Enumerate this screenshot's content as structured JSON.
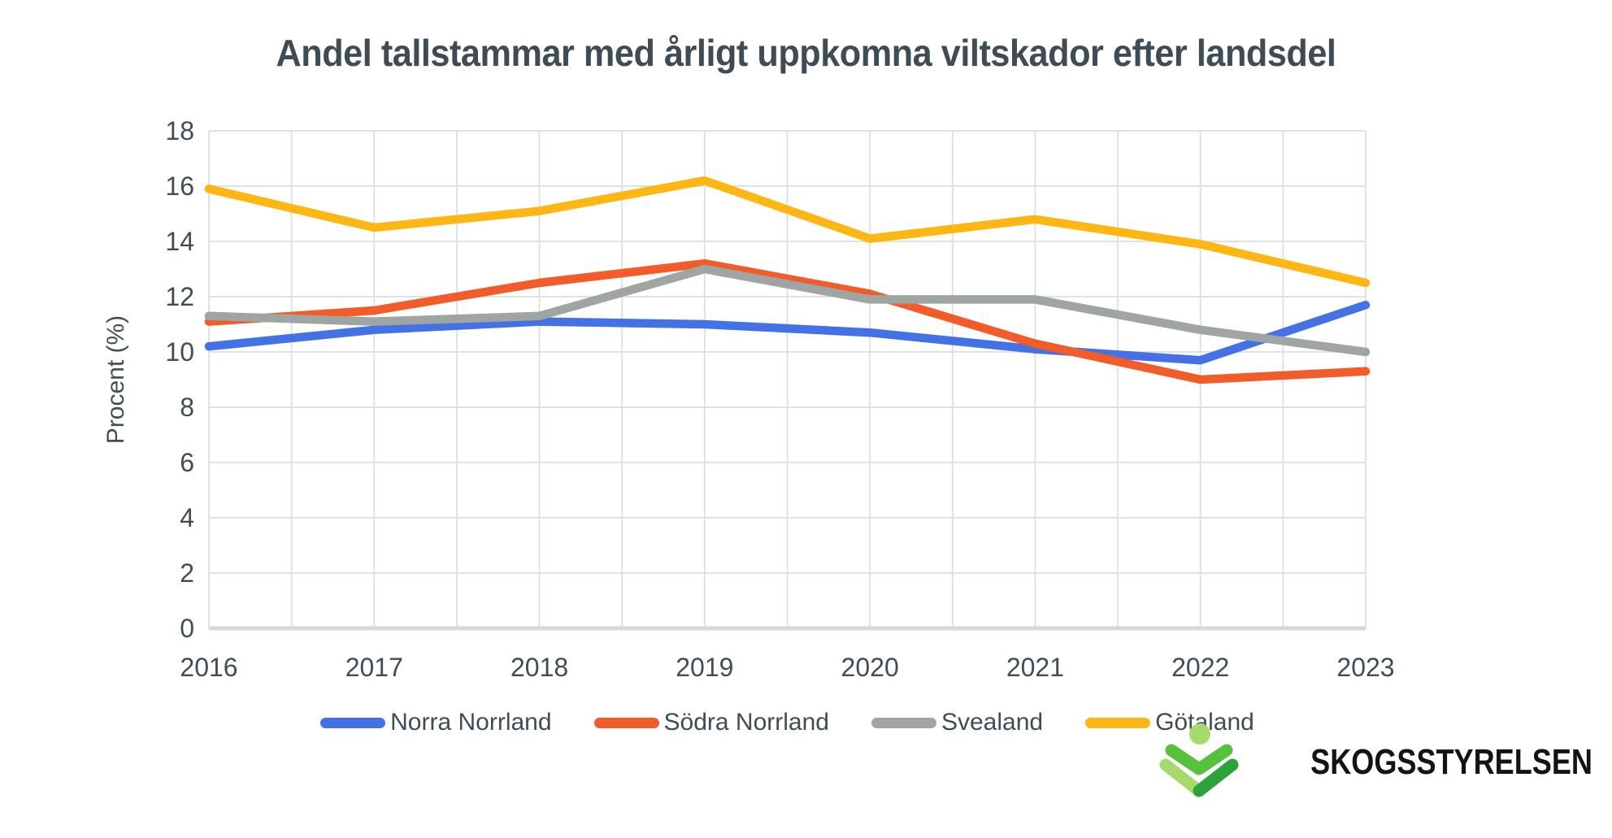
{
  "title": "Andel tallstammar med årligt uppkomna viltskador efter landsdel",
  "y_axis_label": "Procent (%)",
  "logo_text": "SKOGSSTYRELSEN",
  "style": {
    "grid_color": "#dde3e1",
    "baseline_color": "#d3dad8",
    "text_color": "#3f4e55",
    "title_color": "#3e4c55",
    "logo_greens": [
      "#a6da6c",
      "#56c13c",
      "#2ea23a"
    ]
  },
  "chart_data": {
    "type": "line",
    "title": "Andel tallstammar med årligt uppkomna viltskador efter landsdel",
    "xlabel": "",
    "ylabel": "Procent (%)",
    "ylim": [
      0,
      18
    ],
    "ytick_step": 2,
    "grid": true,
    "x_minor_gridlines": "half-step",
    "legend_position": "bottom",
    "categories": [
      "2016",
      "2017",
      "2018",
      "2019",
      "2020",
      "2021",
      "2022",
      "2023"
    ],
    "series": [
      {
        "name": "Norra Norrland",
        "color": "#4472e4",
        "values": [
          10.2,
          10.8,
          11.1,
          11.0,
          10.7,
          10.1,
          9.7,
          11.7
        ]
      },
      {
        "name": "Södra Norrland",
        "color": "#f25c2a",
        "values": [
          11.1,
          11.5,
          12.5,
          13.2,
          12.1,
          10.3,
          9.0,
          9.3
        ]
      },
      {
        "name": "Svealand",
        "color": "#9ea5a2",
        "values": [
          11.3,
          11.1,
          11.3,
          13.0,
          11.9,
          11.9,
          10.8,
          10.0
        ]
      },
      {
        "name": "Götaland",
        "color": "#fdb714",
        "values": [
          15.9,
          14.5,
          15.1,
          16.2,
          14.1,
          14.8,
          13.9,
          12.5
        ]
      }
    ]
  }
}
